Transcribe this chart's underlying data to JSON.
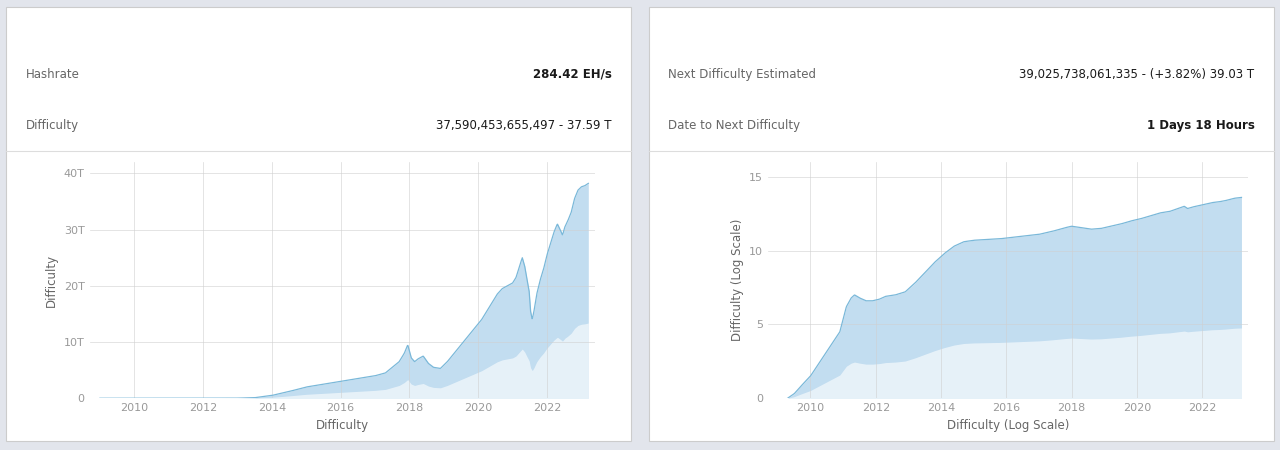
{
  "bg_color": "#e2e5ec",
  "panel_color": "#ffffff",
  "chart_line_color": "#7ab8d9",
  "chart_fill_color": "#b8d8ee",
  "chart_fill_bottom": "#e8f3fa",
  "grid_color": "#d0d0d0",
  "text_color_dark": "#1a1a1a",
  "text_color_label": "#666666",
  "text_color_axis": "#999999",
  "text_color_value_bold": "#111111",
  "left_stats": [
    {
      "label": "Hashrate",
      "value": "284.42 EH/s",
      "value_bold": true
    },
    {
      "label": "Difficulty",
      "value": "37,590,453,655,497 - 37.59 T",
      "value_bold": false
    }
  ],
  "right_stats": [
    {
      "label": "Next Difficulty Estimated",
      "value": "39,025,738,061,335 - (+3.82%) 39.03 T",
      "value_bold": false
    },
    {
      "label": "Date to Next Difficulty",
      "value": "1 Days 18 Hours",
      "value_bold": true
    }
  ],
  "left_chart": {
    "xlabel": "Difficulty",
    "ylabel": "Difficulty",
    "yticks": [
      0,
      10,
      20,
      30,
      40
    ],
    "ytick_labels": [
      "0",
      "10T",
      "20T",
      "30T",
      "40T"
    ],
    "xlim": [
      2008.7,
      2023.4
    ],
    "ylim": [
      0,
      42
    ],
    "xticks": [
      2010,
      2012,
      2014,
      2016,
      2018,
      2020,
      2022
    ],
    "linear_points": [
      [
        2009.0,
        0.0
      ],
      [
        2010.0,
        0.0
      ],
      [
        2011.0,
        0.0
      ],
      [
        2012.0,
        0.0
      ],
      [
        2013.0,
        0.02
      ],
      [
        2013.5,
        0.1
      ],
      [
        2014.0,
        0.5
      ],
      [
        2014.5,
        1.2
      ],
      [
        2015.0,
        2.0
      ],
      [
        2015.5,
        2.5
      ],
      [
        2016.0,
        3.0
      ],
      [
        2016.5,
        3.5
      ],
      [
        2017.0,
        4.0
      ],
      [
        2017.3,
        4.5
      ],
      [
        2017.5,
        5.5
      ],
      [
        2017.7,
        6.5
      ],
      [
        2017.85,
        8.0
      ],
      [
        2017.95,
        9.5
      ],
      [
        2018.05,
        7.2
      ],
      [
        2018.15,
        6.5
      ],
      [
        2018.25,
        7.0
      ],
      [
        2018.4,
        7.5
      ],
      [
        2018.55,
        6.2
      ],
      [
        2018.7,
        5.5
      ],
      [
        2018.9,
        5.3
      ],
      [
        2019.1,
        6.5
      ],
      [
        2019.3,
        8.0
      ],
      [
        2019.5,
        9.5
      ],
      [
        2019.7,
        11.0
      ],
      [
        2019.9,
        12.5
      ],
      [
        2020.1,
        14.0
      ],
      [
        2020.25,
        15.5
      ],
      [
        2020.4,
        17.0
      ],
      [
        2020.55,
        18.5
      ],
      [
        2020.7,
        19.5
      ],
      [
        2020.85,
        20.0
      ],
      [
        2021.0,
        20.5
      ],
      [
        2021.1,
        21.5
      ],
      [
        2021.2,
        23.5
      ],
      [
        2021.28,
        25.0
      ],
      [
        2021.35,
        23.5
      ],
      [
        2021.42,
        21.0
      ],
      [
        2021.48,
        19.0
      ],
      [
        2021.52,
        15.5
      ],
      [
        2021.57,
        14.0
      ],
      [
        2021.62,
        15.5
      ],
      [
        2021.7,
        18.5
      ],
      [
        2021.8,
        21.0
      ],
      [
        2021.9,
        23.0
      ],
      [
        2022.0,
        25.5
      ],
      [
        2022.1,
        27.5
      ],
      [
        2022.2,
        29.5
      ],
      [
        2022.3,
        31.0
      ],
      [
        2022.38,
        30.0
      ],
      [
        2022.45,
        29.0
      ],
      [
        2022.52,
        30.5
      ],
      [
        2022.6,
        31.5
      ],
      [
        2022.7,
        33.0
      ],
      [
        2022.8,
        35.5
      ],
      [
        2022.9,
        37.0
      ],
      [
        2023.0,
        37.59
      ],
      [
        2023.1,
        37.8
      ],
      [
        2023.2,
        38.2
      ]
    ]
  },
  "right_chart": {
    "xlabel": "Difficulty (Log Scale)",
    "ylabel": "Difficulty (Log Scale)",
    "yticks": [
      0,
      5,
      10,
      15
    ],
    "ytick_labels": [
      "0",
      "5",
      "10",
      "15"
    ],
    "xlim": [
      2008.7,
      2023.4
    ],
    "ylim": [
      0,
      16
    ],
    "xticks": [
      2010,
      2012,
      2014,
      2016,
      2018,
      2020,
      2022
    ],
    "log_points": [
      [
        2009.3,
        0.0
      ],
      [
        2009.5,
        0.3
      ],
      [
        2009.7,
        0.8
      ],
      [
        2010.0,
        1.5
      ],
      [
        2010.3,
        2.5
      ],
      [
        2010.6,
        3.5
      ],
      [
        2010.9,
        4.5
      ],
      [
        2011.1,
        6.2
      ],
      [
        2011.25,
        6.8
      ],
      [
        2011.35,
        7.0
      ],
      [
        2011.5,
        6.8
      ],
      [
        2011.7,
        6.6
      ],
      [
        2011.9,
        6.6
      ],
      [
        2012.1,
        6.7
      ],
      [
        2012.3,
        6.9
      ],
      [
        2012.6,
        7.0
      ],
      [
        2012.9,
        7.2
      ],
      [
        2013.2,
        7.8
      ],
      [
        2013.5,
        8.5
      ],
      [
        2013.8,
        9.2
      ],
      [
        2014.1,
        9.8
      ],
      [
        2014.4,
        10.3
      ],
      [
        2014.7,
        10.6
      ],
      [
        2015.0,
        10.7
      ],
      [
        2015.4,
        10.75
      ],
      [
        2015.8,
        10.8
      ],
      [
        2016.2,
        10.9
      ],
      [
        2016.6,
        11.0
      ],
      [
        2017.0,
        11.1
      ],
      [
        2017.4,
        11.3
      ],
      [
        2017.8,
        11.55
      ],
      [
        2018.0,
        11.65
      ],
      [
        2018.3,
        11.55
      ],
      [
        2018.6,
        11.45
      ],
      [
        2018.9,
        11.5
      ],
      [
        2019.2,
        11.65
      ],
      [
        2019.5,
        11.8
      ],
      [
        2019.8,
        12.0
      ],
      [
        2020.1,
        12.15
      ],
      [
        2020.4,
        12.35
      ],
      [
        2020.7,
        12.55
      ],
      [
        2021.0,
        12.65
      ],
      [
        2021.25,
        12.85
      ],
      [
        2021.45,
        13.0
      ],
      [
        2021.55,
        12.85
      ],
      [
        2021.7,
        12.95
      ],
      [
        2021.9,
        13.05
      ],
      [
        2022.1,
        13.15
      ],
      [
        2022.3,
        13.25
      ],
      [
        2022.5,
        13.3
      ],
      [
        2022.7,
        13.38
      ],
      [
        2022.9,
        13.5
      ],
      [
        2023.0,
        13.55
      ],
      [
        2023.2,
        13.6
      ]
    ]
  }
}
